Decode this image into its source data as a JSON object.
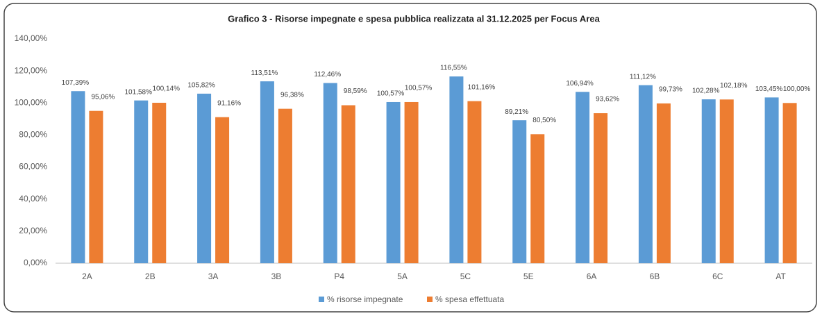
{
  "chart_data": {
    "type": "bar",
    "title": "Grafico 3 - Risorse impegnate e spesa pubblica realizzata al 31.12.2025 per Focus Area",
    "categories": [
      "2A",
      "2B",
      "3A",
      "3B",
      "P4",
      "5A",
      "5C",
      "5E",
      "6A",
      "6B",
      "6C",
      "AT"
    ],
    "series": [
      {
        "name": "% risorse impegnate",
        "color": "#5b9bd5",
        "values": [
          107.39,
          101.58,
          105.82,
          113.51,
          112.46,
          100.57,
          116.55,
          89.21,
          106.94,
          111.12,
          102.28,
          103.45
        ],
        "value_labels": [
          "107,39%",
          "101,58%",
          "105,82%",
          "113,51%",
          "112,46%",
          "100,57%",
          "116,55%",
          "89,21%",
          "106,94%",
          "111,12%",
          "102,28%",
          "103,45%"
        ]
      },
      {
        "name": "% spesa effettuata",
        "color": "#ed7d31",
        "values": [
          95.06,
          100.14,
          91.16,
          96.38,
          98.59,
          100.57,
          101.16,
          80.5,
          93.62,
          99.73,
          102.18,
          100.0
        ],
        "value_labels": [
          "95,06%",
          "100,14%",
          "91,16%",
          "96,38%",
          "98,59%",
          "100,57%",
          "101,16%",
          "80,50%",
          "93,62%",
          "99,73%",
          "102,18%",
          "100,00%"
        ]
      }
    ],
    "ylim": [
      0,
      140
    ],
    "yticks": [
      {
        "value": 0,
        "label": "0,00%"
      },
      {
        "value": 20,
        "label": "20,00%"
      },
      {
        "value": 40,
        "label": "40,00%"
      },
      {
        "value": 60,
        "label": "60,00%"
      },
      {
        "value": 80,
        "label": "80,00%"
      },
      {
        "value": 100,
        "label": "100,00%"
      },
      {
        "value": 120,
        "label": "120,00%"
      },
      {
        "value": 140,
        "label": "140,00%"
      }
    ],
    "grid": false,
    "legend": "bottom"
  }
}
